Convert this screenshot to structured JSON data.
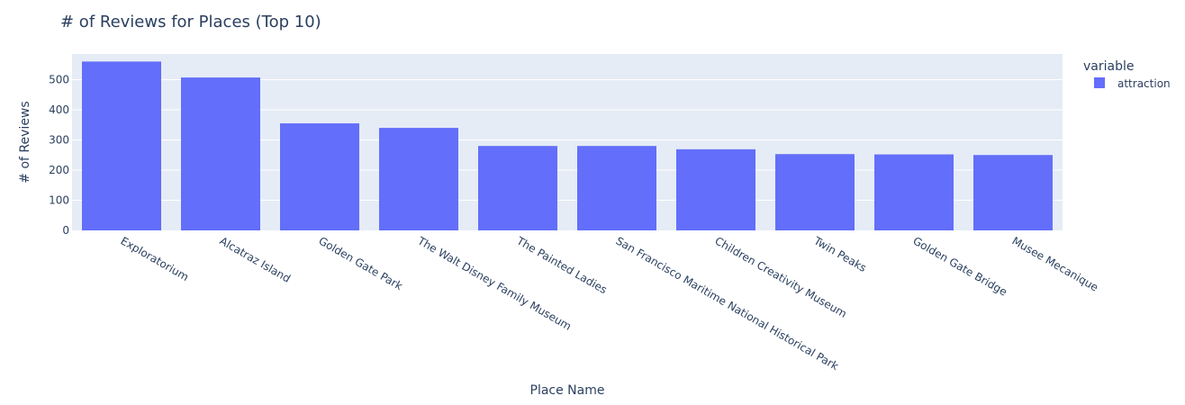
{
  "chart_data": {
    "type": "bar",
    "title": "# of Reviews for Places (Top 10)",
    "xlabel": "Place Name",
    "ylabel": "# of Reviews",
    "categories": [
      "Exploratorium",
      "Alcatraz Island",
      "Golden Gate Park",
      "The Walt Disney Family Museum",
      "The Painted Ladies",
      "San Francisco Maritime National Historical Park",
      "Children Creativity Museum",
      "Twin Peaks",
      "Golden Gate Bridge",
      "Musee Mecanique"
    ],
    "series": [
      {
        "name": "attraction",
        "values": [
          560,
          507,
          355,
          340,
          280,
          280,
          269,
          253,
          252,
          250
        ]
      }
    ],
    "ylim": [
      0,
      585
    ],
    "yticks": [
      0,
      100,
      200,
      300,
      400,
      500
    ],
    "grid": true,
    "legend": {
      "title": "variable",
      "position": "top-right"
    },
    "colors": {
      "bar": "#636efa",
      "plot_bg": "#e5ecf6",
      "grid": "#ffffff",
      "text": "#2a3f5f"
    }
  }
}
